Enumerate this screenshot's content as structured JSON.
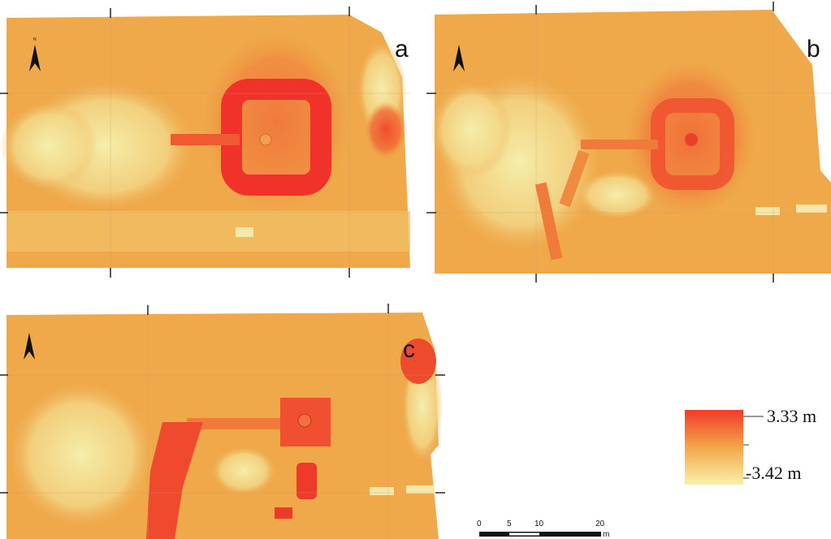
{
  "panels": [
    {
      "label": "a"
    },
    {
      "label": "b"
    },
    {
      "label": "c"
    }
  ],
  "north_arrow": "N",
  "legend": {
    "max_label": "3.33 m",
    "min_label": "-3.42 m"
  },
  "scale_bar": {
    "ticks": [
      "0",
      "5",
      "10",
      "20"
    ],
    "unit": "m"
  }
}
